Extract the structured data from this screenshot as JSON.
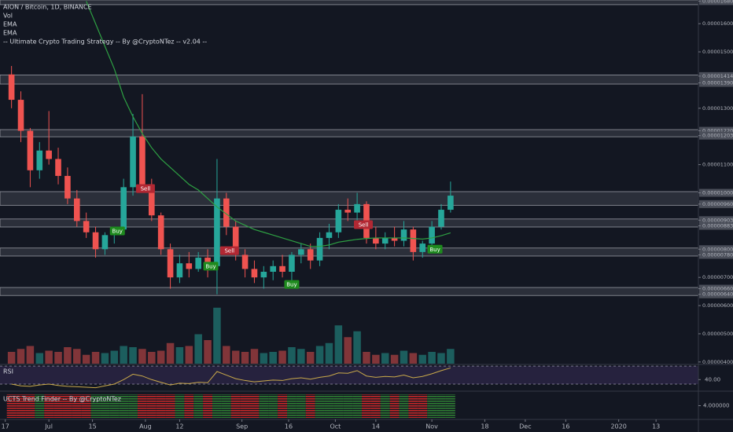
{
  "chart_data": {
    "type": "candlestick",
    "title": "AION / Bitcoin, 1D, BINANCE",
    "legend": [
      "Vol",
      "EMA",
      "EMA",
      "-- Ultimate Crypto Trading Strategy -- By @CryptoNTez -- v2.04 --"
    ],
    "x": [
      2,
      5,
      8,
      11,
      14,
      17,
      20,
      23,
      26,
      29,
      32,
      35,
      38,
      41,
      44,
      47,
      50,
      53,
      56,
      59,
      62,
      65,
      68,
      71,
      74,
      77,
      80,
      83,
      86,
      89,
      92,
      95,
      98,
      101,
      104,
      107,
      110,
      113,
      116,
      119,
      122,
      125,
      128,
      131,
      134,
      137,
      140,
      143
    ],
    "open": [
      1.42e-05,
      1.33e-05,
      1.22e-05,
      1.08e-05,
      1.15e-05,
      1.12e-05,
      1.06e-05,
      9.8e-06,
      9e-06,
      8.6e-06,
      8e-06,
      8.5e-06,
      8.7e-06,
      1.02e-05,
      1.2e-05,
      1.03e-05,
      9.2e-06,
      8e-06,
      7e-06,
      7.5e-06,
      7.3e-06,
      7.7e-06,
      7.4e-06,
      9.8e-06,
      8.8e-06,
      7.8e-06,
      7.3e-06,
      7e-06,
      7.2e-06,
      7.4e-06,
      7.2e-06,
      7.8e-06,
      8e-06,
      7.6e-06,
      8.4e-06,
      8.6e-06,
      9.4e-06,
      9.3e-06,
      9.6e-06,
      8.4e-06,
      8.2e-06,
      8.4e-06,
      8.3e-06,
      8.7e-06,
      7.9e-06,
      8.2e-06,
      8.8e-06,
      9.4e-06
    ],
    "high": [
      1.45e-05,
      1.36e-05,
      1.23e-05,
      1.18e-05,
      1.29e-05,
      1.16e-05,
      1.09e-05,
      1.01e-05,
      9.3e-06,
      8.8e-06,
      8.6e-06,
      8.8e-06,
      1.05e-05,
      1.28e-05,
      1.35e-05,
      1.05e-05,
      9.3e-06,
      8.2e-06,
      7.8e-06,
      7.9e-06,
      7.9e-06,
      8e-06,
      1.12e-05,
      1e-05,
      9e-06,
      8e-06,
      7.6e-06,
      7.4e-06,
      7.6e-06,
      7.8e-06,
      7.9e-06,
      8.2e-06,
      8.2e-06,
      8.6e-06,
      8.9e-06,
      9.6e-06,
      9.8e-06,
      1e-05,
      9.7e-06,
      8.8e-06,
      8.6e-06,
      8.8e-06,
      9e-06,
      8.8e-06,
      8.3e-06,
      9e-06,
      9.6e-06,
      1.04e-05
    ],
    "low": [
      1.3e-05,
      1.18e-05,
      1.02e-05,
      1.05e-05,
      1.1e-05,
      1.03e-05,
      9.6e-06,
      8.8e-06,
      8.4e-06,
      7.7e-06,
      7.8e-06,
      8.2e-06,
      8.5e-06,
      9.9e-06,
      1e-05,
      9e-06,
      7.8e-06,
      6.6e-06,
      6.8e-06,
      7e-06,
      7.2e-06,
      7e-06,
      6.4e-06,
      8.5e-06,
      7.6e-06,
      7e-06,
      6.8e-06,
      6.6e-06,
      6.9e-06,
      7e-06,
      6.8e-06,
      7.5e-06,
      7.3e-06,
      7.4e-06,
      8e-06,
      8.4e-06,
      9e-06,
      9e-06,
      8.2e-06,
      8e-06,
      8e-06,
      8.1e-06,
      8.1e-06,
      7.6e-06,
      7.7e-06,
      8.1e-06,
      8.7e-06,
      9.3e-06
    ],
    "close": [
      1.33e-05,
      1.22e-05,
      1.08e-05,
      1.15e-05,
      1.12e-05,
      1.06e-05,
      9.8e-06,
      9e-06,
      8.6e-06,
      8e-06,
      8.5e-06,
      8.7e-06,
      1.02e-05,
      1.2e-05,
      1.03e-05,
      9.2e-06,
      8e-06,
      7e-06,
      7.5e-06,
      7.3e-06,
      7.7e-06,
      7.4e-06,
      9.8e-06,
      8.8e-06,
      7.8e-06,
      7.3e-06,
      7e-06,
      7.2e-06,
      7.4e-06,
      7.2e-06,
      7.8e-06,
      8e-06,
      7.6e-06,
      8.4e-06,
      8.6e-06,
      9.4e-06,
      9.3e-06,
      9.6e-06,
      8.4e-06,
      8.2e-06,
      8.4e-06,
      8.3e-06,
      8.7e-06,
      7.9e-06,
      8.2e-06,
      8.8e-06,
      9.4e-06,
      9.9e-06
    ],
    "up_color": "#26a69a",
    "down_color": "#ef5350",
    "ema": [
      null,
      null,
      null,
      null,
      null,
      null,
      null,
      null,
      1.68e-05,
      1.6e-05,
      1.52e-05,
      1.44e-05,
      1.34e-05,
      1.27e-05,
      1.21e-05,
      1.16e-05,
      1.12e-05,
      1.09e-05,
      1.06e-05,
      1.03e-05,
      1.01e-05,
      9.8e-06,
      9.5e-06,
      9.25e-06,
      9e-06,
      8.85e-06,
      8.7e-06,
      8.6e-06,
      8.5e-06,
      8.4e-06,
      8.3e-06,
      8.2e-06,
      8.1e-06,
      8.1e-06,
      8.15e-06,
      8.25e-06,
      8.3e-06,
      8.35e-06,
      8.38e-06,
      8.4e-06,
      8.4e-06,
      8.4e-06,
      8.4e-06,
      8.38e-06,
      8.36e-06,
      8.4e-06,
      8.48e-06,
      8.58e-06
    ],
    "ema_color": "#2ea043",
    "volume": [
      20,
      25,
      30,
      18,
      22,
      20,
      28,
      25,
      15,
      20,
      18,
      22,
      30,
      28,
      25,
      20,
      22,
      35,
      28,
      30,
      50,
      40,
      95,
      30,
      22,
      20,
      25,
      18,
      20,
      22,
      28,
      25,
      20,
      30,
      35,
      65,
      45,
      55,
      20,
      15,
      18,
      15,
      22,
      18,
      15,
      20,
      18,
      25
    ],
    "volume_ylim": [
      0,
      100
    ],
    "xlim": [
      -1.7,
      222.6
    ],
    "xticks": [
      {
        "value": 0,
        "label": "17"
      },
      {
        "value": 14,
        "label": "Jul"
      },
      {
        "value": 28,
        "label": "15"
      },
      {
        "value": 45,
        "label": "Aug"
      },
      {
        "value": 56,
        "label": "12"
      },
      {
        "value": 76,
        "label": "Sep"
      },
      {
        "value": 91,
        "label": "16"
      },
      {
        "value": 106,
        "label": "Oct"
      },
      {
        "value": 119,
        "label": "14"
      },
      {
        "value": 137,
        "label": "Nov"
      },
      {
        "value": 154,
        "label": "18"
      },
      {
        "value": 167,
        "label": "Dec"
      },
      {
        "value": 180,
        "label": "16"
      },
      {
        "value": 197,
        "label": "2020"
      },
      {
        "value": 209,
        "label": "13"
      }
    ],
    "ylim": [
      3.94e-06,
      1.684e-05
    ],
    "yticks": [
      {
        "value": 1.68e-05,
        "label": "0.00001680"
      },
      {
        "value": 1.6e-05,
        "label": "0.00001600"
      },
      {
        "value": 1.5e-05,
        "label": "0.00001500"
      },
      {
        "value": 1.414e-05,
        "label": "0.00001414"
      },
      {
        "value": 1.39e-05,
        "label": "0.00001390"
      },
      {
        "value": 1.3e-05,
        "label": "0.00001300"
      },
      {
        "value": 1.22e-05,
        "label": "0.00001220"
      },
      {
        "value": 1.203e-05,
        "label": "0.00001203"
      },
      {
        "value": 1.1e-05,
        "label": "0.00001100"
      },
      {
        "value": 1e-05,
        "label": "0.00001000"
      },
      {
        "value": 9.6e-06,
        "label": "0.00000960"
      },
      {
        "value": 9.03e-06,
        "label": "0.00000903"
      },
      {
        "value": 8.83e-06,
        "label": "0.00000883"
      },
      {
        "value": 8e-06,
        "label": "0.00000800"
      },
      {
        "value": 7.8e-06,
        "label": "0.00000780"
      },
      {
        "value": 7e-06,
        "label": "0.00000700"
      },
      {
        "value": 6.6e-06,
        "label": "0.00000660"
      },
      {
        "value": 6.4e-06,
        "label": "0.00000640"
      },
      {
        "value": 6e-06,
        "label": "0.00000600"
      },
      {
        "value": 5e-06,
        "label": "0.00000500"
      },
      {
        "value": 4e-06,
        "label": "0.00000400"
      }
    ],
    "zones": [
      [
        1.68e-05,
        1.68e-05
      ],
      [
        1.414e-05,
        1.39e-05
      ],
      [
        1.22e-05,
        1.203e-05
      ],
      [
        1e-05,
        9.6e-06
      ],
      [
        9.03e-06,
        8.83e-06
      ],
      [
        8e-06,
        7.8e-06
      ],
      [
        6.6e-06,
        6.4e-06
      ]
    ],
    "signals": [
      {
        "text": "Buy",
        "x": 36,
        "y": 8.65e-06,
        "color": "#1e8a1e"
      },
      {
        "text": "Sell",
        "x": 45,
        "y": 1.015e-05,
        "color": "#b22833"
      },
      {
        "text": "Buy",
        "x": 66,
        "y": 7.4e-06,
        "color": "#1e8a1e"
      },
      {
        "text": "Sell",
        "x": 72,
        "y": 7.95e-06,
        "color": "#b22833"
      },
      {
        "text": "Buy",
        "x": 92,
        "y": 6.75e-06,
        "color": "#1e8a1e"
      },
      {
        "text": "Sell",
        "x": 115,
        "y": 8.87e-06,
        "color": "#b22833"
      },
      {
        "text": "Buy",
        "x": 138,
        "y": 8e-06,
        "color": "#1e8a1e"
      }
    ],
    "rsi_title": "RSI",
    "rsi": [
      30,
      26,
      25,
      28,
      30,
      27,
      25,
      24,
      23,
      22,
      26,
      30,
      40,
      52,
      48,
      40,
      34,
      28,
      32,
      31,
      34,
      33,
      58,
      50,
      42,
      38,
      35,
      37,
      39,
      38,
      42,
      44,
      41,
      45,
      48,
      55,
      54,
      60,
      48,
      45,
      47,
      46,
      50,
      44,
      47,
      53,
      60,
      66
    ],
    "rsi_color": "#c9a94a",
    "rsi_ylim": [
      16,
      72
    ],
    "rsi_ticks": [
      {
        "value": 40,
        "label": "40.00"
      }
    ],
    "rsi_bands": [
      70,
      30
    ],
    "trend_title": "UCTS Trend Finder -- By @CryptoNTez",
    "trend_colors": [
      "#c62828",
      "#c62828",
      "#c62828",
      "#2e7d32",
      "#c62828",
      "#c62828",
      "#c62828",
      "#c62828",
      "#c62828",
      "#2e7d32",
      "#2e7d32",
      "#2e7d32",
      "#2e7d32",
      "#2e7d32",
      "#c62828",
      "#c62828",
      "#c62828",
      "#c62828",
      "#2e7d32",
      "#c62828",
      "#2e7d32",
      "#c62828",
      "#2e7d32",
      "#2e7d32",
      "#c62828",
      "#c62828",
      "#c62828",
      "#2e7d32",
      "#2e7d32",
      "#c62828",
      "#2e7d32",
      "#2e7d32",
      "#c62828",
      "#2e7d32",
      "#2e7d32",
      "#2e7d32",
      "#2e7d32",
      "#2e7d32",
      "#c62828",
      "#c62828",
      "#2e7d32",
      "#c62828",
      "#2e7d32",
      "#c62828",
      "#c62828",
      "#2e7d32",
      "#2e7d32",
      "#2e7d32"
    ],
    "trend_ylim": [
      0,
      8
    ],
    "trend_ticks": [
      {
        "value": 4,
        "label": "4.000000"
      }
    ]
  }
}
